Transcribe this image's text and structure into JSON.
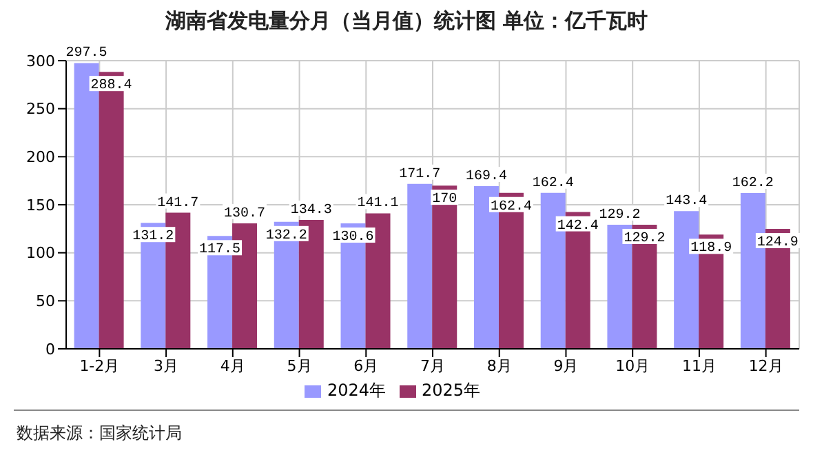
{
  "chart_data": {
    "type": "bar",
    "title": "湖南省发电量分月（当月值）统计图 单位：亿千瓦时",
    "categories": [
      "1-2月",
      "3月",
      "4月",
      "5月",
      "6月",
      "7月",
      "8月",
      "9月",
      "10月",
      "11月",
      "12月"
    ],
    "series": [
      {
        "name": "2024年",
        "color": "#9999ff",
        "values": [
          297.5,
          131.2,
          117.5,
          132.2,
          130.6,
          171.7,
          169.4,
          162.4,
          129.2,
          143.4,
          162.2
        ]
      },
      {
        "name": "2025年",
        "color": "#993366",
        "values": [
          288.4,
          141.7,
          130.7,
          134.3,
          141.1,
          170,
          162.4,
          142.4,
          129.2,
          118.9,
          124.9
        ]
      }
    ],
    "ylim": [
      0,
      300
    ],
    "yticks": [
      0,
      50,
      100,
      150,
      200,
      250,
      300
    ],
    "grid": true,
    "legend": "bottom",
    "data_labels": true,
    "annotations": [
      "数据来源：国家统计局"
    ]
  }
}
